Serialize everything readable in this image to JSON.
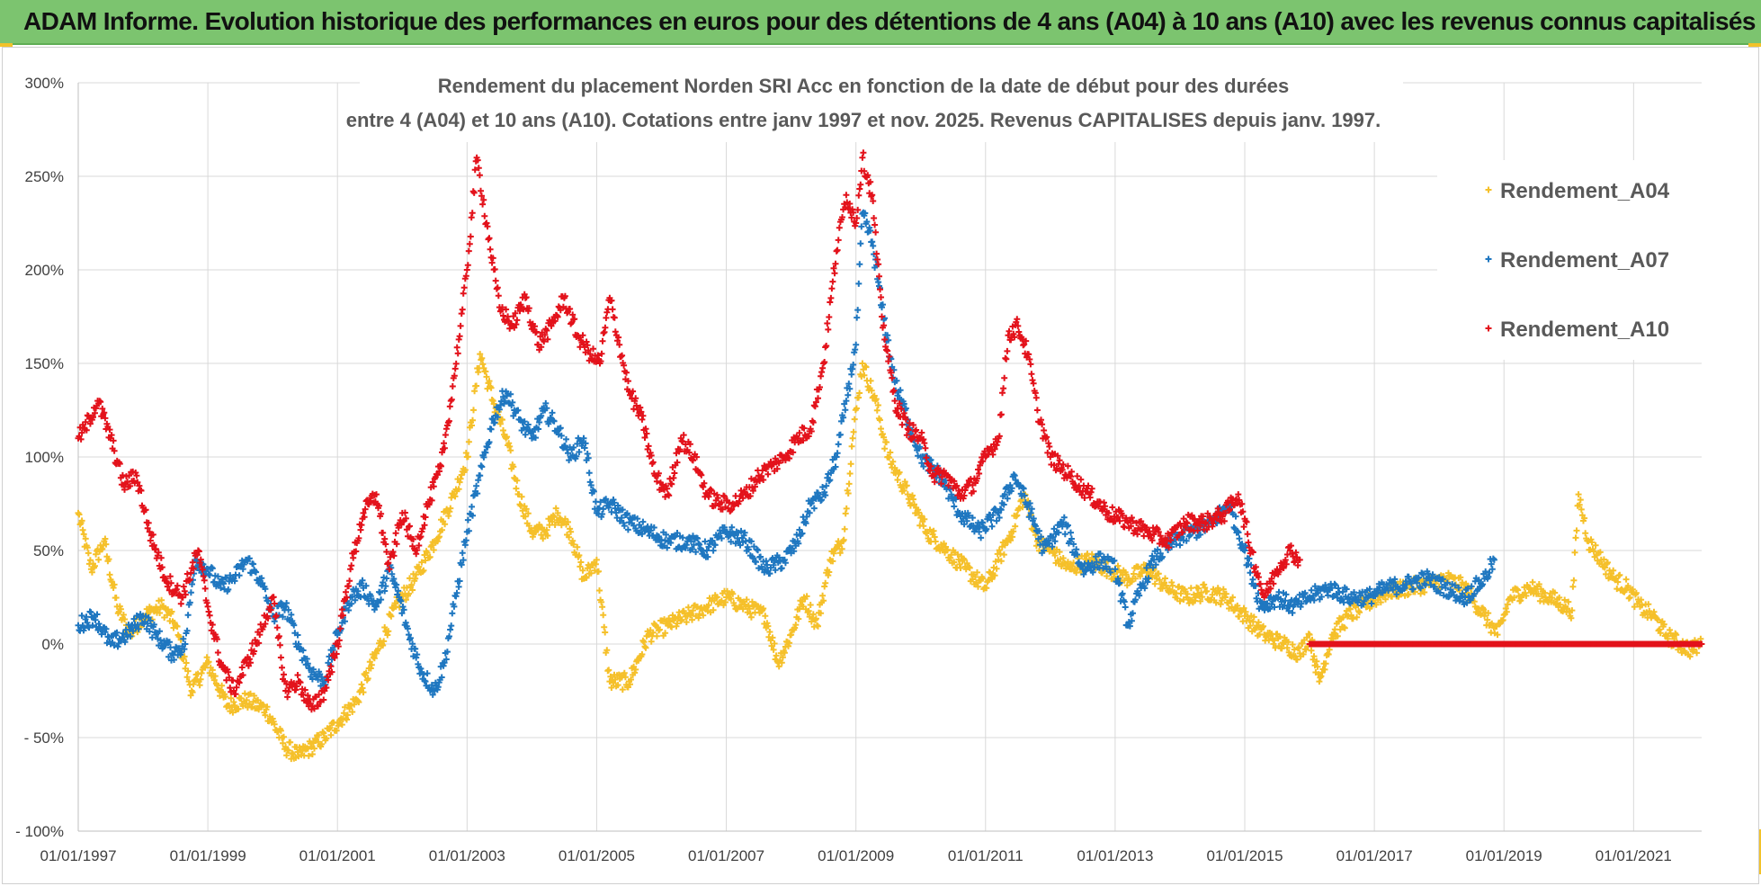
{
  "header": {
    "title": "ADAM Informe. Evolution historique des performances en euros pour des détentions de 4 ans (A04) à 10 ans (A10) avec les revenus connus capitalisés"
  },
  "colors": {
    "banner": "#7cc46f",
    "A04": "#f5c02a",
    "A07": "#1f77c0",
    "A10": "#e3121b",
    "grid": "#d9d9d9"
  },
  "chart_data": {
    "type": "scatter",
    "title_lines": [
      "Rendement du placement Norden SRI Acc en fonction de la date de début pour des durées",
      "entre 4 (A04) et 10 ans (A10). Cotations entre janv 1997 et nov. 2025. Revenus CAPITALISES depuis janv. 1997."
    ],
    "xlabel": "",
    "ylabel": "",
    "x_range": [
      1997.0,
      2022.05
    ],
    "ylim": [
      -100,
      300
    ],
    "grid": true,
    "legend_position": "top-right",
    "x_tick_years": [
      1997,
      1999,
      2001,
      2003,
      2005,
      2007,
      2009,
      2011,
      2013,
      2015,
      2017,
      2019,
      2021
    ],
    "x_tick_labels": [
      "01/01/1997",
      "01/01/1999",
      "01/01/2001",
      "01/01/2003",
      "01/01/2005",
      "01/01/2007",
      "01/01/2009",
      "01/01/2011",
      "01/01/2013",
      "01/01/2015",
      "01/01/2017",
      "01/01/2019",
      "01/01/2021"
    ],
    "y_ticks": [
      300,
      250,
      200,
      150,
      100,
      50,
      0,
      -50,
      -100
    ],
    "y_tick_labels": [
      "300%",
      "250%",
      "200%",
      "150%",
      "100%",
      "50%",
      "0%",
      "- 50%",
      "- 100%"
    ],
    "series": [
      {
        "name": "Rendement_A04",
        "color": "#f5c02a",
        "x": [
          1997.0,
          1997.2,
          1997.4,
          1997.6,
          1997.8,
          1998.0,
          1998.3,
          1998.5,
          1998.75,
          1999.0,
          1999.3,
          1999.6,
          1999.9,
          2000.2,
          2000.4,
          2000.6,
          2000.8,
          2001.0,
          2001.3,
          2001.6,
          2001.9,
          2002.2,
          2002.5,
          2002.8,
          2003.0,
          2003.2,
          2003.4,
          2003.6,
          2003.8,
          2004.0,
          2004.2,
          2004.4,
          2004.6,
          2004.8,
          2005.0,
          2005.2,
          2005.5,
          2005.8,
          2006.1,
          2006.4,
          2006.7,
          2007.0,
          2007.3,
          2007.6,
          2007.8,
          2008.0,
          2008.2,
          2008.4,
          2008.6,
          2008.8,
          2008.95,
          2009.1,
          2009.3,
          2009.5,
          2009.8,
          2010.1,
          2010.4,
          2010.7,
          2011.0,
          2011.2,
          2011.4,
          2011.6,
          2011.8,
          2012.0,
          2012.3,
          2012.6,
          2012.9,
          2013.2,
          2013.5,
          2013.8,
          2014.1,
          2014.4,
          2014.7,
          2015.0,
          2015.3,
          2015.6,
          2015.85,
          2016.0,
          2016.15,
          2016.35,
          2016.6,
          2016.9,
          2017.2,
          2017.5,
          2017.8,
          2018.1,
          2018.4,
          2018.7,
          2018.9,
          2019.1,
          2019.4,
          2019.7,
          2019.95,
          2020.05,
          2020.15,
          2020.3,
          2020.5,
          2020.7,
          2020.9,
          2021.1,
          2021.3,
          2021.5,
          2021.7,
          2021.9,
          2022.05
        ],
        "y": [
          70,
          40,
          55,
          20,
          5,
          15,
          20,
          10,
          -25,
          -10,
          -33,
          -30,
          -35,
          -55,
          -60,
          -55,
          -50,
          -42,
          -30,
          -5,
          20,
          35,
          55,
          80,
          100,
          155,
          130,
          110,
          80,
          60,
          60,
          70,
          60,
          35,
          45,
          -20,
          -20,
          5,
          10,
          15,
          20,
          25,
          20,
          15,
          -10,
          5,
          25,
          10,
          45,
          55,
          110,
          150,
          130,
          100,
          80,
          60,
          50,
          40,
          30,
          45,
          60,
          80,
          55,
          50,
          40,
          45,
          40,
          35,
          40,
          30,
          25,
          28,
          25,
          15,
          5,
          0,
          -5,
          5,
          -20,
          5,
          15,
          22,
          28,
          30,
          32,
          35,
          30,
          15,
          5,
          25,
          30,
          25,
          20,
          18,
          80,
          55,
          45,
          35,
          30,
          20,
          15,
          5,
          0,
          -3,
          0
        ]
      },
      {
        "name": "Rendement_A07",
        "color": "#1f77c0",
        "x": [
          1997.0,
          1997.25,
          1997.5,
          1997.75,
          1998.0,
          1998.2,
          1998.45,
          1998.65,
          1998.8,
          1999.0,
          1999.2,
          1999.4,
          1999.6,
          1999.8,
          2000.0,
          2000.2,
          2000.4,
          2000.6,
          2000.8,
          2001.0,
          2001.2,
          2001.4,
          2001.6,
          2001.8,
          2001.95,
          2002.1,
          2002.3,
          2002.5,
          2002.65,
          2002.8,
          2003.0,
          2003.2,
          2003.4,
          2003.6,
          2003.8,
          2004.0,
          2004.2,
          2004.4,
          2004.6,
          2004.8,
          2005.0,
          2005.2,
          2005.5,
          2005.8,
          2006.1,
          2006.4,
          2006.7,
          2007.0,
          2007.3,
          2007.6,
          2007.9,
          2008.1,
          2008.3,
          2008.5,
          2008.7,
          2008.85,
          2009.0,
          2009.1,
          2009.25,
          2009.4,
          2009.6,
          2009.8,
          2010.0,
          2010.3,
          2010.6,
          2010.9,
          2011.2,
          2011.45,
          2011.7,
          2011.9,
          2012.2,
          2012.5,
          2012.8,
          2013.0,
          2013.2,
          2013.4,
          2013.6,
          2013.9,
          2014.2,
          2014.5,
          2014.75,
          2015.0,
          2015.25,
          2015.5,
          2015.75,
          2016.0,
          2016.3,
          2016.6,
          2016.9,
          2017.2,
          2017.5,
          2017.8,
          2018.1,
          2018.4,
          2018.7,
          2018.85
        ],
        "y": [
          10,
          15,
          0,
          5,
          15,
          5,
          -5,
          0,
          45,
          40,
          30,
          35,
          45,
          35,
          15,
          20,
          0,
          -15,
          -20,
          5,
          25,
          30,
          20,
          40,
          25,
          5,
          -15,
          -25,
          -10,
          20,
          60,
          90,
          120,
          135,
          120,
          110,
          125,
          115,
          100,
          110,
          70,
          75,
          65,
          60,
          55,
          55,
          50,
          60,
          55,
          40,
          45,
          55,
          75,
          80,
          100,
          130,
          160,
          230,
          215,
          180,
          140,
          120,
          100,
          90,
          70,
          60,
          70,
          90,
          70,
          50,
          65,
          40,
          45,
          40,
          10,
          30,
          45,
          55,
          60,
          65,
          75,
          50,
          20,
          25,
          20,
          25,
          30,
          25,
          25,
          30,
          32,
          35,
          30,
          25,
          35,
          45
        ]
      },
      {
        "name": "Rendement_A10",
        "color": "#e3121b",
        "x": [
          1997.0,
          1997.1,
          1997.3,
          1997.5,
          1997.7,
          1997.9,
          1998.1,
          1998.35,
          1998.6,
          1998.85,
          1999.0,
          1999.2,
          1999.4,
          1999.6,
          1999.8,
          2000.0,
          2000.2,
          2000.4,
          2000.6,
          2000.8,
          2001.0,
          2001.2,
          2001.4,
          2001.6,
          2001.8,
          2002.0,
          2002.2,
          2002.4,
          2002.6,
          2002.75,
          2002.9,
          2003.0,
          2003.15,
          2003.3,
          2003.5,
          2003.7,
          2003.9,
          2004.1,
          2004.3,
          2004.5,
          2004.7,
          2004.9,
          2005.05,
          2005.2,
          2005.35,
          2005.5,
          2005.7,
          2005.9,
          2006.1,
          2006.3,
          2006.5,
          2006.7,
          2006.9,
          2007.1,
          2007.3,
          2007.5,
          2007.7,
          2007.9,
          2008.1,
          2008.3,
          2008.5,
          2008.7,
          2008.85,
          2009.0,
          2009.1,
          2009.25,
          2009.4,
          2009.6,
          2009.8,
          2010.0,
          2010.2,
          2010.4,
          2010.6,
          2010.8,
          2011.0,
          2011.2,
          2011.35,
          2011.5,
          2011.65,
          2011.8,
          2012.0,
          2012.3,
          2012.6,
          2012.9,
          2013.2,
          2013.5,
          2013.8,
          2014.1,
          2014.4,
          2014.7,
          2014.9,
          2015.1,
          2015.3,
          2015.5,
          2015.7,
          2015.85
        ],
        "y": [
          110,
          115,
          130,
          110,
          85,
          90,
          60,
          35,
          25,
          50,
          20,
          -10,
          -25,
          -10,
          5,
          25,
          -25,
          -20,
          -35,
          -25,
          0,
          40,
          70,
          80,
          40,
          70,
          50,
          75,
          95,
          130,
          170,
          200,
          260,
          225,
          180,
          170,
          185,
          160,
          170,
          185,
          165,
          155,
          150,
          185,
          160,
          135,
          120,
          90,
          80,
          110,
          100,
          80,
          75,
          75,
          80,
          90,
          95,
          100,
          110,
          115,
          150,
          210,
          240,
          225,
          260,
          240,
          175,
          130,
          115,
          110,
          90,
          90,
          80,
          85,
          100,
          110,
          165,
          170,
          155,
          125,
          100,
          90,
          80,
          70,
          65,
          60,
          55,
          65,
          65,
          70,
          80,
          50,
          25,
          40,
          50,
          45
        ]
      }
    ],
    "A10_zero_line": {
      "from": 2016.0,
      "to": 2022.05,
      "value": 0
    }
  }
}
